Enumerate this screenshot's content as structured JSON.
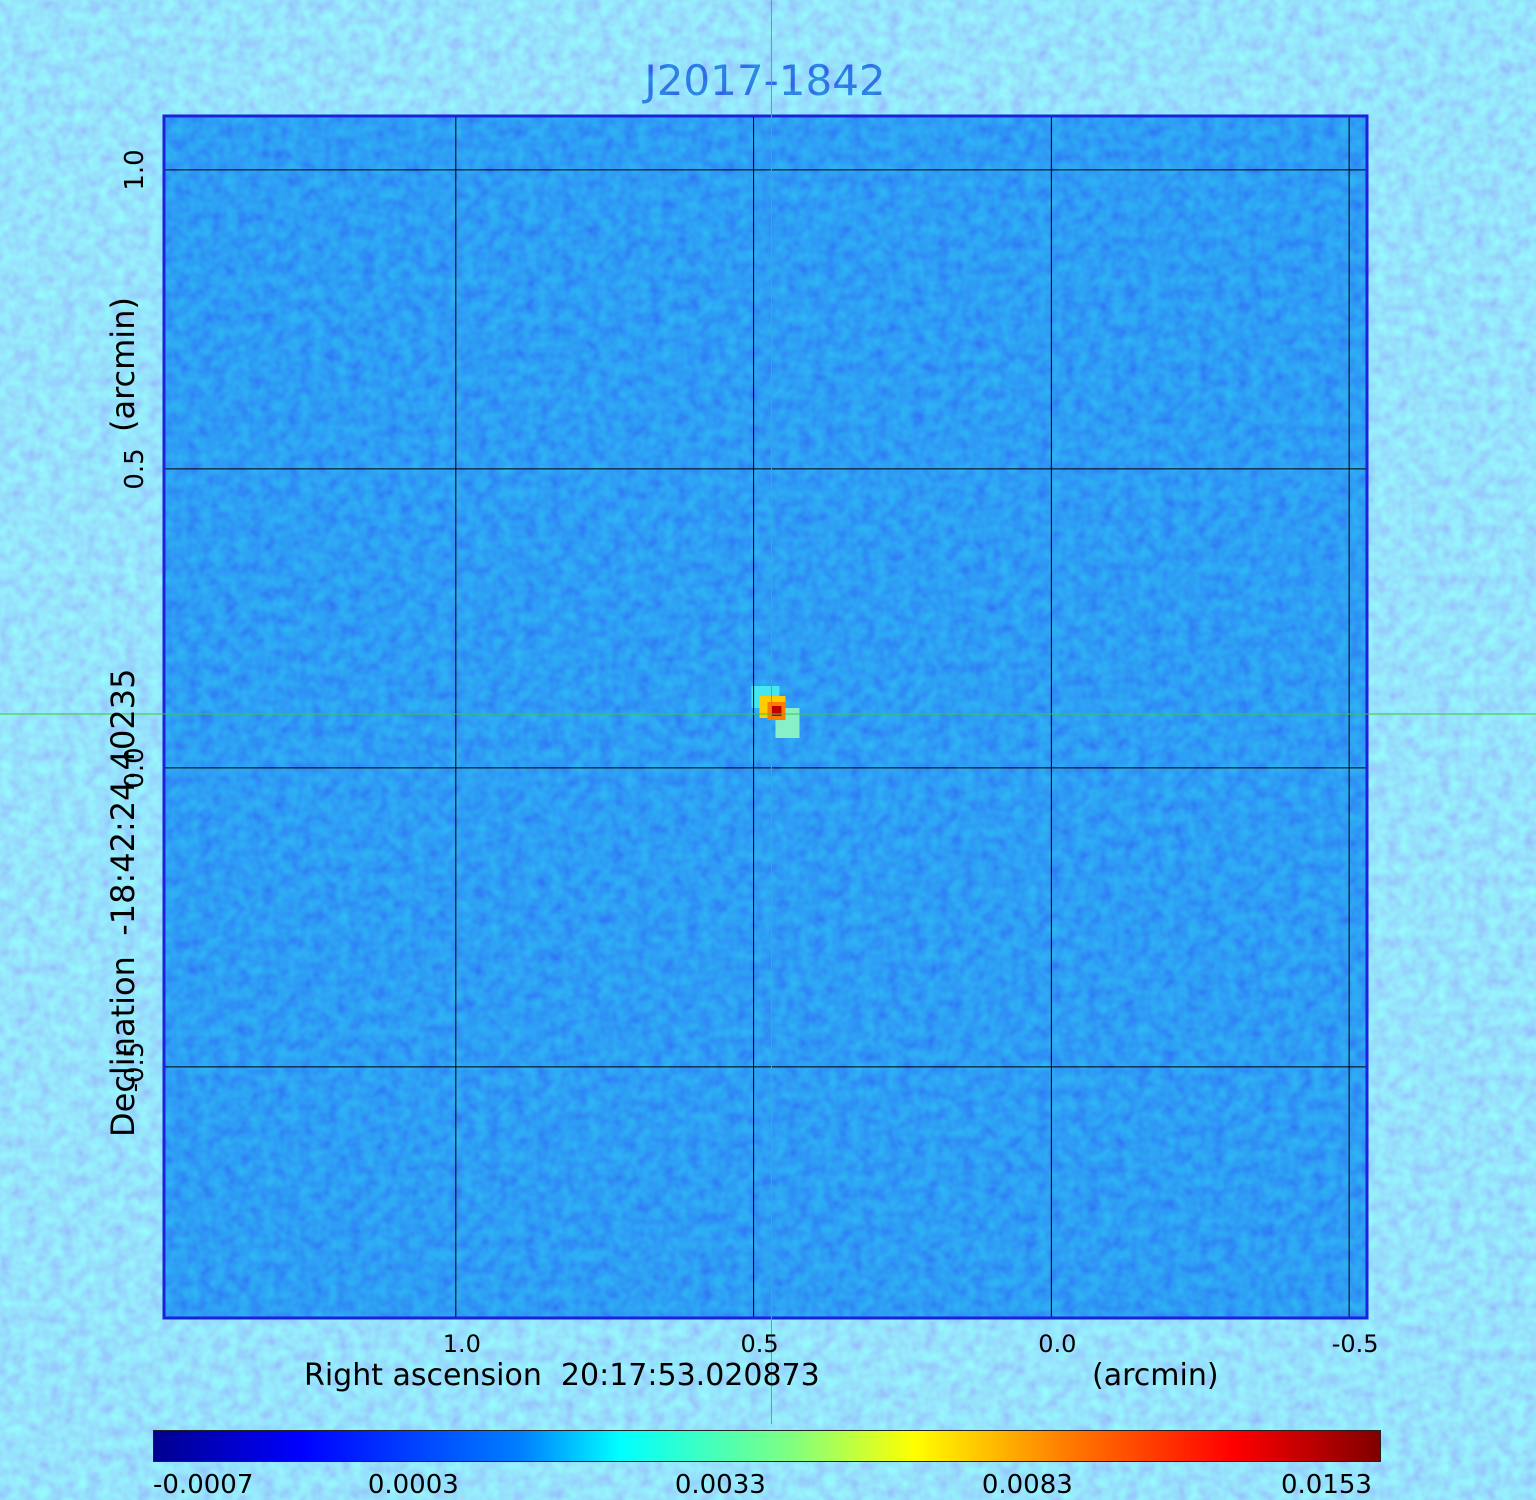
{
  "chart_data": {
    "type": "heatmap",
    "title": "J2017-1842",
    "xlabel": "Right ascension  20:17:53.020873",
    "xunit": "(arcmin)",
    "ylabel": "Declination  -18:42:24.40235",
    "yunit": "(arcmin)",
    "x_ticks": [
      "1.0",
      "0.5",
      "0.0",
      "-0.5"
    ],
    "y_ticks": [
      "1.0",
      "0.5",
      "0.0",
      "-0.5"
    ],
    "x_tick_values": [
      1.0,
      0.5,
      0.0,
      -0.5
    ],
    "y_tick_values": [
      1.0,
      0.5,
      0.0,
      -0.5
    ],
    "xlim": [
      1.49,
      -0.53
    ],
    "ylim": [
      -0.92,
      1.09
    ],
    "grid": true,
    "crosshair": {
      "x": 0.47,
      "y": 0.09,
      "color": "#33cc33"
    },
    "source_peak": {
      "x": 0.47,
      "y": 0.09,
      "value": 0.0153
    },
    "colormap": "jet",
    "colorbar": {
      "ticks": [
        "-0.0007",
        "0.0003",
        "0.0033",
        "0.0083",
        "0.0153"
      ],
      "tick_values": [
        -0.0007,
        0.0003,
        0.0033,
        0.0083,
        0.0153
      ],
      "placement": "bottom"
    }
  }
}
